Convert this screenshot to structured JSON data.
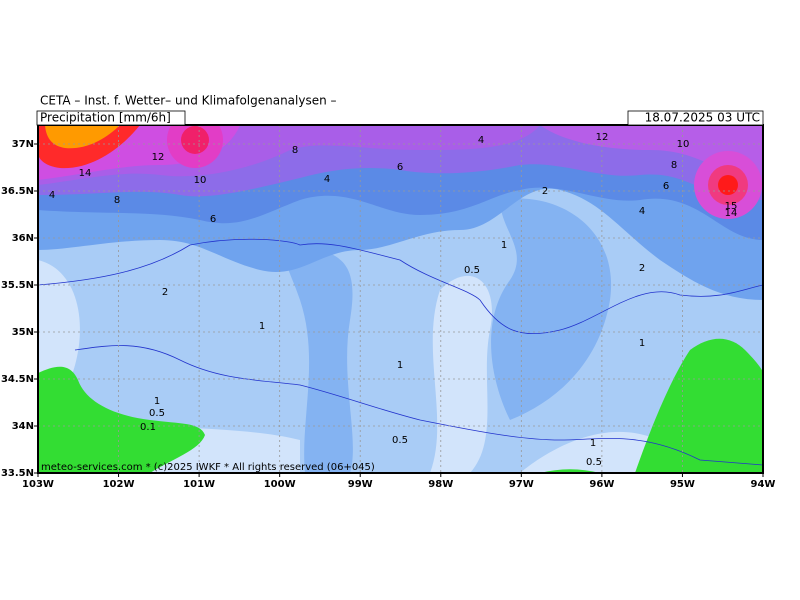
{
  "header": {
    "title": "CETA – Inst. f. Wetter– und Klimafolgenanalysen –",
    "product": "Precipitation [mm/6h]",
    "valid_time": "18.07.2025 03 UTC"
  },
  "map": {
    "lon_ticks": [
      {
        "value": -103,
        "label": "103W"
      },
      {
        "value": -102,
        "label": "102W"
      },
      {
        "value": -101,
        "label": "101W"
      },
      {
        "value": -100,
        "label": "100W"
      },
      {
        "value": -99,
        "label": "99W"
      },
      {
        "value": -98,
        "label": "98W"
      },
      {
        "value": -97,
        "label": "97W"
      },
      {
        "value": -96,
        "label": "96W"
      },
      {
        "value": -95,
        "label": "95W"
      },
      {
        "value": -94,
        "label": "94W"
      }
    ],
    "lat_ticks": [
      {
        "value": 37,
        "label": "37N"
      },
      {
        "value": 36.5,
        "label": "36.5N"
      },
      {
        "value": 36,
        "label": "36N"
      },
      {
        "value": 35.5,
        "label": "35.5N"
      },
      {
        "value": 35,
        "label": "35N"
      },
      {
        "value": 34.5,
        "label": "34.5N"
      },
      {
        "value": 34,
        "label": "34N"
      },
      {
        "value": 33.5,
        "label": "33.5N"
      }
    ],
    "contour_labels": [
      4,
      12,
      10,
      8,
      12,
      8,
      14,
      10,
      6,
      4,
      6,
      2,
      4,
      8,
      15,
      14,
      4,
      6,
      1,
      0.5,
      2,
      2,
      1,
      1,
      1,
      1,
      0.5,
      0.1,
      0.5,
      1,
      0.5
    ],
    "credit": "meteo-services.com * (c)2025 IWKF * All rights reserved (06+045)"
  }
}
